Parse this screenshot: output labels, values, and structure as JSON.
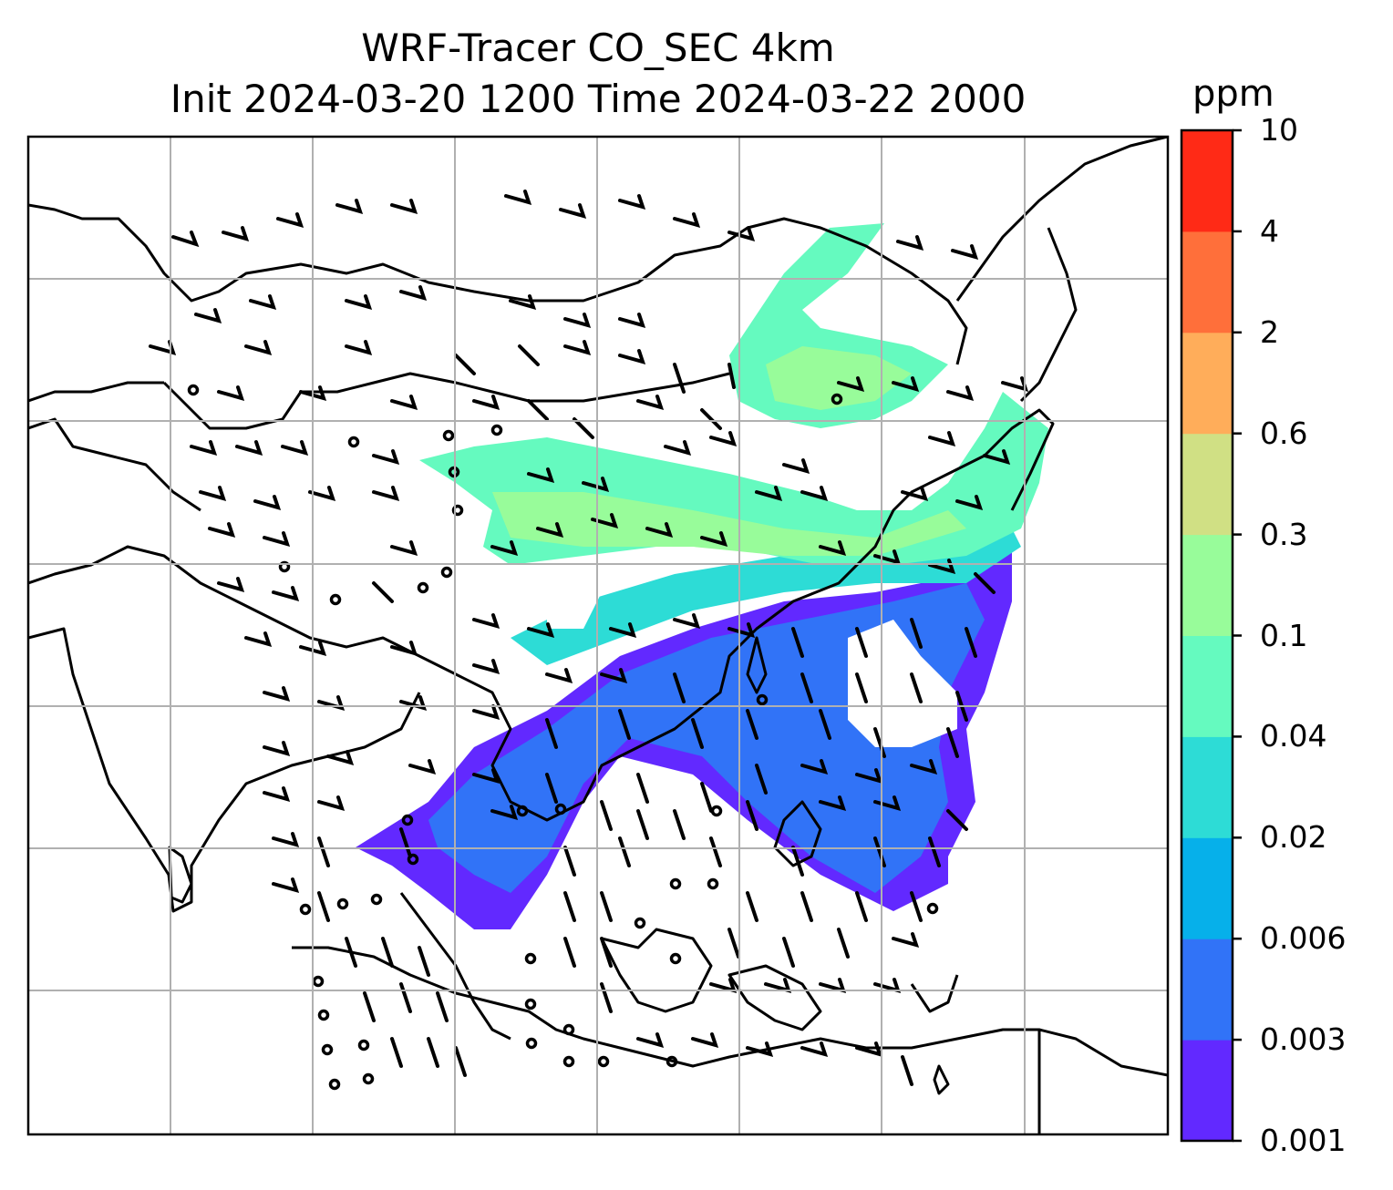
{
  "title": {
    "line1": "WRF-Tracer CO_SEC 4km",
    "line2": "Init 2024-03-20 1200 Time 2024-03-22 2000"
  },
  "colorbar": {
    "unit": "ppm",
    "ticks": [
      "0.001",
      "0.003",
      "0.006",
      "0.02",
      "0.04",
      "0.1",
      "0.3",
      "0.6",
      "2",
      "4",
      "10"
    ],
    "colors": [
      "#6229ff",
      "#3173f7",
      "#06b0ea",
      "#2ddcd6",
      "#65fabf",
      "#98fc9a",
      "#d0e084",
      "#ffad5a",
      "#ff6f3a",
      "#ff2a16"
    ]
  }
}
